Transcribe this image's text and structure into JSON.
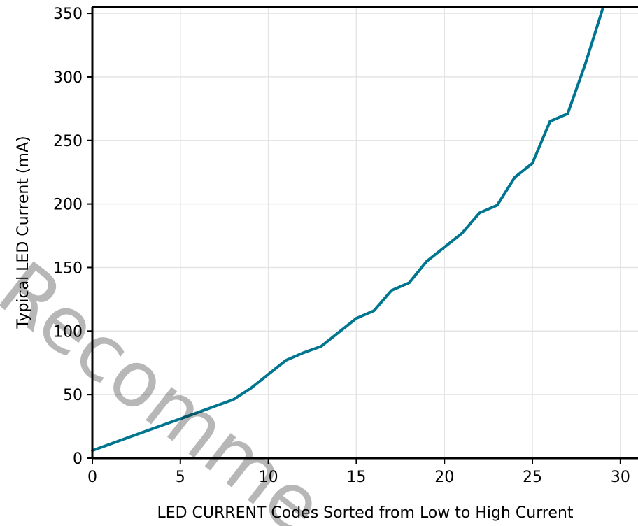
{
  "chart_data": {
    "type": "line",
    "xlabel": "LED CURRENT Codes Sorted from Low to High Current",
    "ylabel": "Typical LED Current (mA)",
    "xlim": [
      0,
      31
    ],
    "ylim": [
      0,
      355
    ],
    "xticks": [
      0,
      5,
      10,
      15,
      20,
      25,
      30
    ],
    "yticks": [
      0,
      50,
      100,
      150,
      200,
      250,
      300,
      350
    ],
    "grid": true,
    "series_color": "#00758f",
    "series": [
      {
        "x": [
          0,
          1,
          2,
          3,
          4,
          5,
          6,
          7,
          8,
          9,
          10,
          11,
          12,
          13,
          14,
          15,
          16,
          17,
          18,
          19,
          20,
          21,
          22,
          23,
          24,
          25,
          26,
          27,
          28,
          29
        ],
        "values": [
          6,
          11,
          16,
          21,
          26,
          31,
          36,
          41,
          46,
          55,
          66,
          77,
          83,
          88,
          99,
          110,
          116,
          132,
          138,
          155,
          166,
          177,
          193,
          199,
          221,
          232,
          265,
          271,
          310,
          354
        ]
      }
    ]
  },
  "watermark": {
    "text": "Recomme"
  }
}
